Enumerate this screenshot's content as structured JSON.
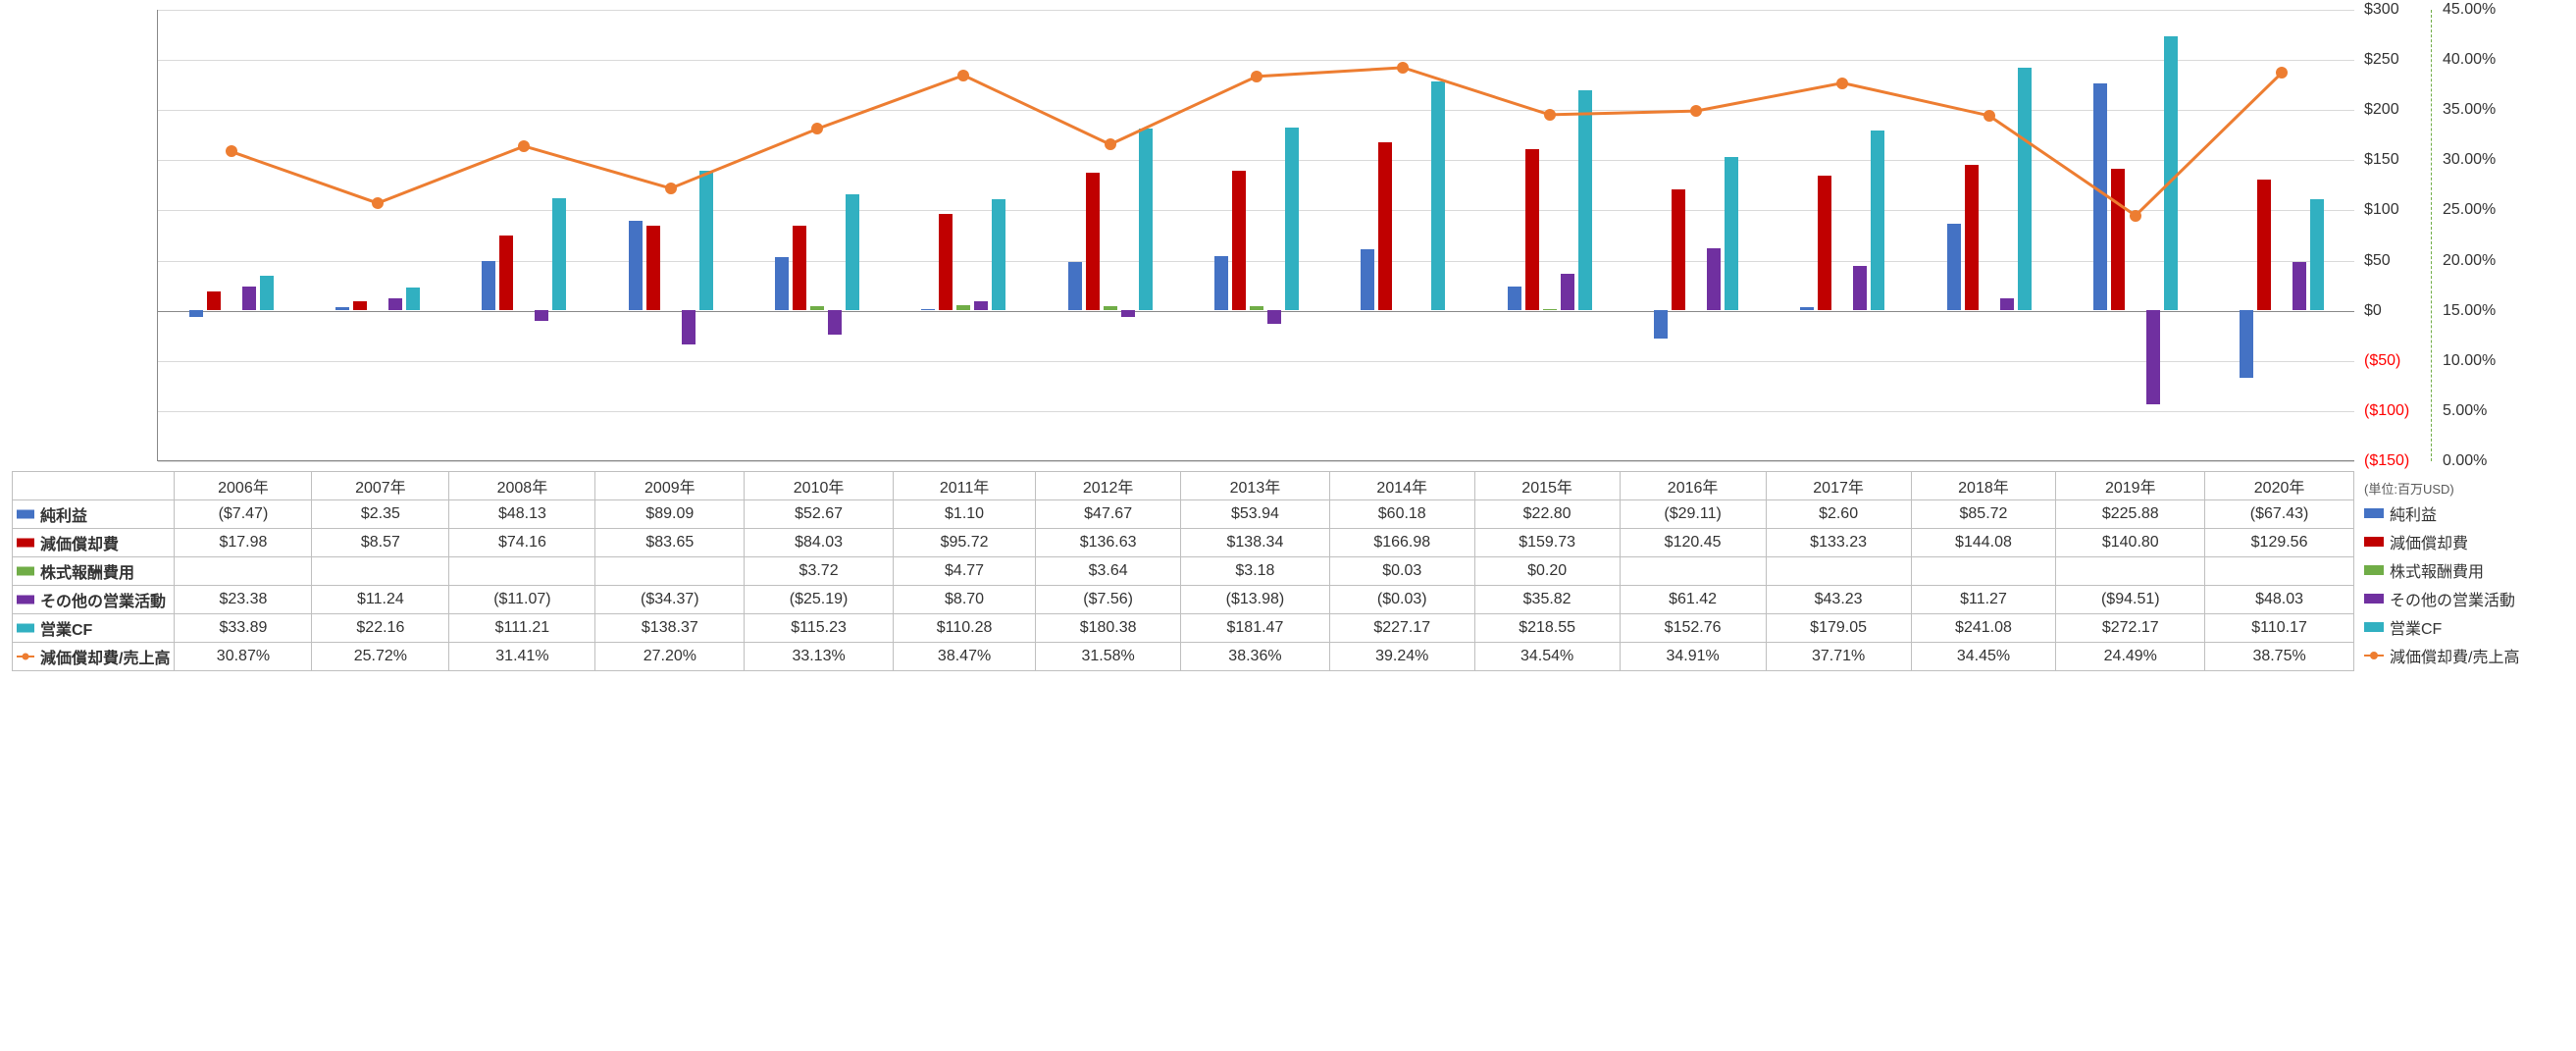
{
  "chart": {
    "type": "bar+line",
    "background_color": "#ffffff",
    "grid_color": "#d9d9d9",
    "axis_color": "#888888",
    "unit_label": "(単位:百万USD)",
    "primary_axis": {
      "min": -150,
      "max": 300,
      "step": 50,
      "ticks": [
        "$300",
        "$250",
        "$200",
        "$150",
        "$100",
        "$50",
        "$0",
        "($50)",
        "($100)",
        "($150)"
      ],
      "tick_values": [
        300,
        250,
        200,
        150,
        100,
        50,
        0,
        -50,
        -100,
        -150
      ],
      "neg_color": "#ff0000"
    },
    "secondary_axis": {
      "min": 0,
      "max": 45,
      "step": 5,
      "ticks": [
        "45.00%",
        "40.00%",
        "35.00%",
        "30.00%",
        "25.00%",
        "20.00%",
        "15.00%",
        "10.00%",
        "5.00%",
        "0.00%"
      ],
      "tick_values": [
        45,
        40,
        35,
        30,
        25,
        20,
        15,
        10,
        5,
        0
      ],
      "line_color": "#70ad47"
    },
    "categories": [
      "2006年",
      "2007年",
      "2008年",
      "2009年",
      "2010年",
      "2011年",
      "2012年",
      "2013年",
      "2014年",
      "2015年",
      "2016年",
      "2017年",
      "2018年",
      "2019年",
      "2020年"
    ],
    "series": [
      {
        "key": "net_income",
        "name": "純利益",
        "color": "#4472c4",
        "type": "bar",
        "values": [
          -7.47,
          2.35,
          48.13,
          89.09,
          52.67,
          1.1,
          47.67,
          53.94,
          60.18,
          22.8,
          -29.11,
          2.6,
          85.72,
          225.88,
          -67.43
        ],
        "display": [
          "($7.47)",
          "$2.35",
          "$48.13",
          "$89.09",
          "$52.67",
          "$1.10",
          "$47.67",
          "$53.94",
          "$60.18",
          "$22.80",
          "($29.11)",
          "$2.60",
          "$85.72",
          "$225.88",
          "($67.43)"
        ]
      },
      {
        "key": "depreciation",
        "name": "減価償却費",
        "color": "#c00000",
        "type": "bar",
        "values": [
          17.98,
          8.57,
          74.16,
          83.65,
          84.03,
          95.72,
          136.63,
          138.34,
          166.98,
          159.73,
          120.45,
          133.23,
          144.08,
          140.8,
          129.56
        ],
        "display": [
          "$17.98",
          "$8.57",
          "$74.16",
          "$83.65",
          "$84.03",
          "$95.72",
          "$136.63",
          "$138.34",
          "$166.98",
          "$159.73",
          "$120.45",
          "$133.23",
          "$144.08",
          "$140.80",
          "$129.56"
        ]
      },
      {
        "key": "stock_comp",
        "name": "株式報酬費用",
        "color": "#70ad47",
        "type": "bar",
        "values": [
          null,
          null,
          null,
          null,
          3.72,
          4.77,
          3.64,
          3.18,
          0.03,
          0.2,
          null,
          null,
          null,
          null,
          null
        ],
        "display": [
          "",
          "",
          "",
          "",
          "$3.72",
          "$4.77",
          "$3.64",
          "$3.18",
          "$0.03",
          "$0.20",
          "",
          "",
          "",
          "",
          ""
        ]
      },
      {
        "key": "other_ops",
        "name": "その他の営業活動",
        "color": "#7030a0",
        "type": "bar",
        "values": [
          23.38,
          11.24,
          -11.07,
          -34.37,
          -25.19,
          8.7,
          -7.56,
          -13.98,
          -0.03,
          35.82,
          61.42,
          43.23,
          11.27,
          -94.51,
          48.03
        ],
        "display": [
          "$23.38",
          "$11.24",
          "($11.07)",
          "($34.37)",
          "($25.19)",
          "$8.70",
          "($7.56)",
          "($13.98)",
          "($0.03)",
          "$35.82",
          "$61.42",
          "$43.23",
          "$11.27",
          "($94.51)",
          "$48.03"
        ]
      },
      {
        "key": "op_cf",
        "name": "営業CF",
        "color": "#31b0c1",
        "type": "bar",
        "values": [
          33.89,
          22.16,
          111.21,
          138.37,
          115.23,
          110.28,
          180.38,
          181.47,
          227.17,
          218.55,
          152.76,
          179.05,
          241.08,
          272.17,
          110.17
        ],
        "display": [
          "$33.89",
          "$22.16",
          "$111.21",
          "$138.37",
          "$115.23",
          "$110.28",
          "$180.38",
          "$181.47",
          "$227.17",
          "$218.55",
          "$152.76",
          "$179.05",
          "$241.08",
          "$272.17",
          "$110.17"
        ]
      },
      {
        "key": "dep_ratio",
        "name": "減価償却費/売上高",
        "color": "#ed7d31",
        "type": "line",
        "axis": "secondary",
        "values": [
          30.87,
          25.72,
          31.41,
          27.2,
          33.13,
          38.47,
          31.58,
          38.36,
          39.24,
          34.54,
          34.91,
          37.71,
          34.45,
          24.49,
          38.75
        ],
        "display": [
          "30.87%",
          "25.72%",
          "31.41%",
          "27.20%",
          "33.13%",
          "38.47%",
          "31.58%",
          "38.36%",
          "39.24%",
          "34.54%",
          "34.91%",
          "37.71%",
          "34.45%",
          "24.49%",
          "38.75%"
        ]
      }
    ]
  }
}
